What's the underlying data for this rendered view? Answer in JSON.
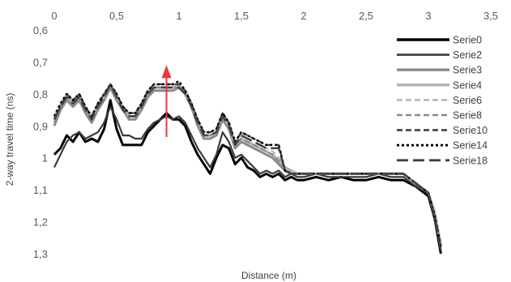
{
  "chart_data": {
    "type": "line",
    "title": "",
    "xlabel": "Distance (m)",
    "ylabel": "2-way travel time (ns)",
    "xlim": [
      0,
      3.5
    ],
    "ylim": [
      0.6,
      1.3
    ],
    "y_inverted": true,
    "x_axis_position": "top",
    "grid": false,
    "legend_position": "right",
    "x_ticks": [
      "0",
      "0,5",
      "1",
      "1,5",
      "2",
      "2,5",
      "3",
      "3,5"
    ],
    "x_tick_values": [
      0,
      0.5,
      1,
      1.5,
      2,
      2.5,
      3,
      3.5
    ],
    "y_ticks": [
      "0,6",
      "0,7",
      "0,8",
      "0,9",
      "1",
      "1,1",
      "1,2",
      "1,3"
    ],
    "y_tick_values": [
      0.6,
      0.7,
      0.8,
      0.9,
      1.0,
      1.1,
      1.2,
      1.3
    ],
    "series": [
      {
        "name": "Serie0",
        "color": "#000000",
        "dash": "solid",
        "width": 3,
        "x": [
          0,
          0.05,
          0.1,
          0.15,
          0.2,
          0.25,
          0.3,
          0.35,
          0.4,
          0.45,
          0.5,
          0.55,
          0.6,
          0.65,
          0.7,
          0.75,
          0.8,
          0.85,
          0.9,
          0.95,
          1.0,
          1.05,
          1.1,
          1.15,
          1.2,
          1.25,
          1.3,
          1.35,
          1.4,
          1.45,
          1.5,
          1.55,
          1.6,
          1.65,
          1.7,
          1.75,
          1.8,
          1.85,
          1.9,
          1.95,
          2.0,
          2.1,
          2.2,
          2.3,
          2.4,
          2.5,
          2.6,
          2.7,
          2.8,
          2.9,
          3.0,
          3.05,
          3.1
        ],
        "y": [
          0.99,
          0.97,
          0.93,
          0.95,
          0.92,
          0.95,
          0.94,
          0.95,
          0.91,
          0.82,
          0.91,
          0.96,
          0.96,
          0.96,
          0.96,
          0.92,
          0.9,
          0.88,
          0.86,
          0.88,
          0.88,
          0.9,
          0.95,
          0.99,
          1.02,
          1.05,
          1.0,
          0.96,
          0.97,
          1.02,
          1.0,
          1.03,
          1.04,
          1.06,
          1.05,
          1.06,
          1.05,
          1.07,
          1.06,
          1.07,
          1.07,
          1.06,
          1.07,
          1.06,
          1.07,
          1.07,
          1.06,
          1.07,
          1.07,
          1.09,
          1.12,
          1.19,
          1.3
        ]
      },
      {
        "name": "Serie2",
        "color": "#3a3a3a",
        "dash": "solid",
        "width": 2.2,
        "x": [
          0,
          0.05,
          0.1,
          0.15,
          0.2,
          0.25,
          0.3,
          0.35,
          0.4,
          0.45,
          0.5,
          0.55,
          0.6,
          0.65,
          0.7,
          0.75,
          0.8,
          0.85,
          0.9,
          0.95,
          1.0,
          1.05,
          1.1,
          1.15,
          1.2,
          1.25,
          1.3,
          1.35,
          1.4,
          1.45,
          1.5,
          1.55,
          1.6,
          1.65,
          1.7,
          1.75,
          1.8,
          1.85,
          1.9,
          1.95,
          2.0,
          2.1,
          2.2,
          2.3,
          2.4,
          2.5,
          2.6,
          2.7,
          2.8,
          2.9,
          3.0,
          3.05,
          3.1
        ],
        "y": [
          1.03,
          0.99,
          0.95,
          0.93,
          0.92,
          0.94,
          0.93,
          0.92,
          0.89,
          0.84,
          0.88,
          0.93,
          0.93,
          0.94,
          0.94,
          0.91,
          0.89,
          0.88,
          0.87,
          0.88,
          0.87,
          0.89,
          0.93,
          0.97,
          1.0,
          1.03,
          0.99,
          0.92,
          0.95,
          1.0,
          0.99,
          1.01,
          1.03,
          1.05,
          1.04,
          1.05,
          1.04,
          1.06,
          1.05,
          1.06,
          1.06,
          1.05,
          1.06,
          1.06,
          1.06,
          1.06,
          1.05,
          1.06,
          1.06,
          1.09,
          1.11,
          1.18,
          1.29
        ]
      },
      {
        "name": "Serie3",
        "color": "#8a8a8a",
        "dash": "solid",
        "width": 3,
        "x": [
          0,
          0.05,
          0.1,
          0.15,
          0.2,
          0.25,
          0.3,
          0.35,
          0.4,
          0.45,
          0.5,
          0.55,
          0.6,
          0.65,
          0.7,
          0.75,
          0.8,
          0.85,
          0.9,
          0.95,
          1.0,
          1.05,
          1.1,
          1.15,
          1.2,
          1.25,
          1.3,
          1.35,
          1.4,
          1.45,
          1.5,
          1.55,
          1.6,
          1.65,
          1.7,
          1.75,
          1.8,
          1.85,
          1.9,
          1.95,
          2.0,
          2.1,
          2.2,
          2.3,
          2.4,
          2.5,
          2.6,
          2.7,
          2.8,
          2.9,
          3.0,
          3.05,
          3.1
        ],
        "y": [
          0.9,
          0.85,
          0.82,
          0.84,
          0.82,
          0.86,
          0.89,
          0.85,
          0.82,
          0.78,
          0.82,
          0.85,
          0.88,
          0.88,
          0.85,
          0.81,
          0.79,
          0.79,
          0.79,
          0.79,
          0.78,
          0.8,
          0.84,
          0.9,
          0.94,
          0.94,
          0.93,
          0.88,
          0.91,
          0.97,
          0.95,
          0.96,
          0.97,
          0.98,
          0.99,
          1.0,
          1.02,
          1.04,
          1.05,
          1.05,
          1.05,
          1.05,
          1.05,
          1.05,
          1.05,
          1.05,
          1.05,
          1.05,
          1.05,
          1.08,
          1.11,
          1.18,
          1.28
        ]
      },
      {
        "name": "Serie4",
        "color": "#b0b0b0",
        "dash": "solid",
        "width": 3,
        "x": [
          0,
          0.05,
          0.1,
          0.15,
          0.2,
          0.25,
          0.3,
          0.35,
          0.4,
          0.45,
          0.5,
          0.55,
          0.6,
          0.65,
          0.7,
          0.75,
          0.8,
          0.85,
          0.9,
          0.95,
          1.0,
          1.05,
          1.1,
          1.15,
          1.2,
          1.25,
          1.3,
          1.35,
          1.4,
          1.45,
          1.5,
          1.55,
          1.6,
          1.65,
          1.7,
          1.75,
          1.8,
          1.85,
          1.9,
          1.95,
          2.0,
          2.1,
          2.2,
          2.3,
          2.4,
          2.5,
          2.6,
          2.7,
          2.8,
          2.9,
          3.0,
          3.05,
          3.1
        ],
        "y": [
          0.88,
          0.84,
          0.81,
          0.83,
          0.81,
          0.85,
          0.88,
          0.84,
          0.81,
          0.77,
          0.81,
          0.84,
          0.87,
          0.87,
          0.84,
          0.8,
          0.78,
          0.78,
          0.78,
          0.78,
          0.77,
          0.79,
          0.83,
          0.89,
          0.93,
          0.93,
          0.92,
          0.87,
          0.9,
          0.96,
          0.94,
          0.95,
          0.96,
          0.97,
          0.98,
          0.99,
          1.01,
          1.03,
          1.04,
          1.05,
          1.05,
          1.05,
          1.05,
          1.05,
          1.05,
          1.05,
          1.05,
          1.05,
          1.05,
          1.08,
          1.11,
          1.17,
          1.27
        ]
      },
      {
        "name": "Serie6",
        "color": "#b5b5b5",
        "dash": "dash",
        "width": 2.2,
        "x": [
          0,
          0.05,
          0.1,
          0.15,
          0.2,
          0.25,
          0.3,
          0.35,
          0.4,
          0.45,
          0.5,
          0.55,
          0.6,
          0.65,
          0.7,
          0.75,
          0.8,
          0.85,
          0.9,
          0.95,
          1.0,
          1.05,
          1.1,
          1.15,
          1.2,
          1.25,
          1.3,
          1.35,
          1.4,
          1.45,
          1.5,
          1.55,
          1.6,
          1.65,
          1.7,
          1.75,
          1.8,
          1.85,
          1.9,
          1.95,
          2.0,
          2.1,
          2.2,
          2.3,
          2.4,
          2.5,
          2.6,
          2.7,
          2.8,
          2.9,
          3.0,
          3.05,
          3.1
        ],
        "y": [
          0.87,
          0.83,
          0.8,
          0.82,
          0.8,
          0.84,
          0.87,
          0.83,
          0.8,
          0.77,
          0.8,
          0.84,
          0.86,
          0.86,
          0.83,
          0.79,
          0.77,
          0.77,
          0.77,
          0.77,
          0.77,
          0.79,
          0.83,
          0.88,
          0.92,
          0.92,
          0.91,
          0.86,
          0.89,
          0.95,
          0.93,
          0.94,
          0.95,
          0.96,
          0.97,
          0.98,
          1.0,
          1.03,
          1.04,
          1.05,
          1.05,
          1.05,
          1.05,
          1.05,
          1.05,
          1.05,
          1.05,
          1.05,
          1.05,
          1.08,
          1.11,
          1.17,
          1.27
        ]
      },
      {
        "name": "Serie8",
        "color": "#8a8a8a",
        "dash": "dash",
        "width": 2.2,
        "x": [
          0,
          0.05,
          0.1,
          0.15,
          0.2,
          0.25,
          0.3,
          0.35,
          0.4,
          0.45,
          0.5,
          0.55,
          0.6,
          0.65,
          0.7,
          0.75,
          0.8,
          0.85,
          0.9,
          0.95,
          1.0,
          1.05,
          1.1,
          1.15,
          1.2,
          1.25,
          1.3,
          1.35,
          1.4,
          1.45,
          1.5,
          1.55,
          1.6,
          1.65,
          1.7,
          1.75,
          1.8,
          1.85,
          1.9,
          1.95,
          2.0,
          2.1,
          2.2,
          2.3,
          2.4,
          2.5,
          2.6,
          2.7,
          2.8,
          2.9,
          3.0,
          3.05,
          3.1
        ],
        "y": [
          0.89,
          0.84,
          0.81,
          0.83,
          0.81,
          0.85,
          0.88,
          0.84,
          0.81,
          0.78,
          0.81,
          0.85,
          0.87,
          0.87,
          0.84,
          0.8,
          0.78,
          0.78,
          0.78,
          0.78,
          0.78,
          0.8,
          0.84,
          0.89,
          0.93,
          0.93,
          0.92,
          0.87,
          0.9,
          0.96,
          0.94,
          0.95,
          0.96,
          0.97,
          0.98,
          0.99,
          1.01,
          1.03,
          1.05,
          1.05,
          1.05,
          1.05,
          1.05,
          1.05,
          1.05,
          1.05,
          1.05,
          1.05,
          1.05,
          1.08,
          1.11,
          1.18,
          1.28
        ]
      },
      {
        "name": "Serie10",
        "color": "#404040",
        "dash": "dash",
        "width": 2.2,
        "x": [
          0,
          0.05,
          0.1,
          0.15,
          0.2,
          0.25,
          0.3,
          0.35,
          0.4,
          0.45,
          0.5,
          0.55,
          0.6,
          0.65,
          0.7,
          0.75,
          0.8,
          0.85,
          0.9,
          0.95,
          1.0,
          1.05,
          1.1,
          1.15,
          1.2,
          1.25,
          1.3,
          1.35,
          1.4,
          1.45,
          1.5,
          1.55,
          1.6,
          1.65,
          1.7,
          1.75,
          1.8,
          1.85,
          1.9,
          1.95,
          2.0,
          2.1,
          2.2,
          2.3,
          2.4,
          2.5,
          2.6,
          2.7,
          2.8,
          2.9,
          3.0,
          3.05,
          3.1
        ],
        "y": [
          0.88,
          0.84,
          0.8,
          0.82,
          0.8,
          0.84,
          0.87,
          0.83,
          0.8,
          0.77,
          0.8,
          0.84,
          0.86,
          0.86,
          0.83,
          0.79,
          0.77,
          0.77,
          0.77,
          0.77,
          0.77,
          0.79,
          0.83,
          0.88,
          0.92,
          0.92,
          0.91,
          0.86,
          0.89,
          0.95,
          0.92,
          0.93,
          0.94,
          0.95,
          0.96,
          0.96,
          0.96,
          1.04,
          1.05,
          1.05,
          1.05,
          1.05,
          1.05,
          1.05,
          1.05,
          1.05,
          1.05,
          1.05,
          1.05,
          1.08,
          1.11,
          1.18,
          1.28
        ]
      },
      {
        "name": "Serie14",
        "color": "#000000",
        "dash": "dot",
        "width": 2.5,
        "x": [
          0,
          0.05,
          0.1,
          0.15,
          0.2,
          0.25,
          0.3,
          0.35,
          0.4,
          0.45,
          0.5,
          0.55,
          0.6,
          0.65,
          0.7,
          0.75,
          0.8,
          0.85,
          0.9,
          0.95,
          1.0,
          1.05,
          1.1,
          1.15,
          1.2,
          1.25,
          1.3,
          1.35,
          1.4,
          1.45,
          1.5,
          1.55,
          1.6,
          1.65,
          1.7,
          1.75,
          1.8,
          1.85,
          1.9,
          1.95,
          2.0,
          2.1,
          2.2,
          2.3,
          2.4,
          2.5,
          2.6,
          2.7,
          2.8,
          2.9,
          3.0,
          3.05,
          3.1
        ],
        "y": [
          0.87,
          0.83,
          0.8,
          0.82,
          0.8,
          0.84,
          0.87,
          0.83,
          0.8,
          0.77,
          0.8,
          0.84,
          0.86,
          0.86,
          0.83,
          0.79,
          0.77,
          0.77,
          0.77,
          0.77,
          0.76,
          0.79,
          0.83,
          0.88,
          0.92,
          0.92,
          0.91,
          0.86,
          0.89,
          0.95,
          0.92,
          0.93,
          0.94,
          0.95,
          0.96,
          0.96,
          0.96,
          1.04,
          1.05,
          1.05,
          1.05,
          1.05,
          1.05,
          1.05,
          1.05,
          1.05,
          1.05,
          1.05,
          1.05,
          1.08,
          1.11,
          1.18,
          1.28
        ]
      },
      {
        "name": "Serie18",
        "color": "#404040",
        "dash": "longdash",
        "width": 2.5,
        "x": [
          0,
          0.05,
          0.1,
          0.15,
          0.2,
          0.25,
          0.3,
          0.35,
          0.4,
          0.45,
          0.5,
          0.55,
          0.6,
          0.65,
          0.7,
          0.75,
          0.8,
          0.85,
          0.9,
          0.95,
          1.0,
          1.05,
          1.1,
          1.15,
          1.2,
          1.25,
          1.3,
          1.35,
          1.4,
          1.45,
          1.5,
          1.55,
          1.6,
          1.65,
          1.7,
          1.75,
          1.8,
          1.85,
          1.9,
          1.95,
          2.0,
          2.1,
          2.2,
          2.3,
          2.4,
          2.5,
          2.6,
          2.7,
          2.8,
          2.9,
          3.0,
          3.05,
          3.1
        ],
        "y": [
          0.88,
          0.84,
          0.81,
          0.83,
          0.81,
          0.85,
          0.88,
          0.84,
          0.81,
          0.77,
          0.81,
          0.85,
          0.87,
          0.87,
          0.84,
          0.8,
          0.78,
          0.78,
          0.78,
          0.78,
          0.78,
          0.8,
          0.84,
          0.89,
          0.93,
          0.93,
          0.92,
          0.87,
          0.9,
          0.96,
          0.93,
          0.94,
          0.95,
          0.96,
          0.97,
          0.97,
          0.97,
          1.04,
          1.05,
          1.05,
          1.05,
          1.05,
          1.05,
          1.05,
          1.05,
          1.05,
          1.05,
          1.05,
          1.05,
          1.08,
          1.11,
          1.19,
          1.29
        ]
      }
    ],
    "annotations": [
      {
        "type": "arrow",
        "color": "#e8393c",
        "x": 0.9,
        "y_from": 0.935,
        "y_to": 0.71
      }
    ]
  }
}
